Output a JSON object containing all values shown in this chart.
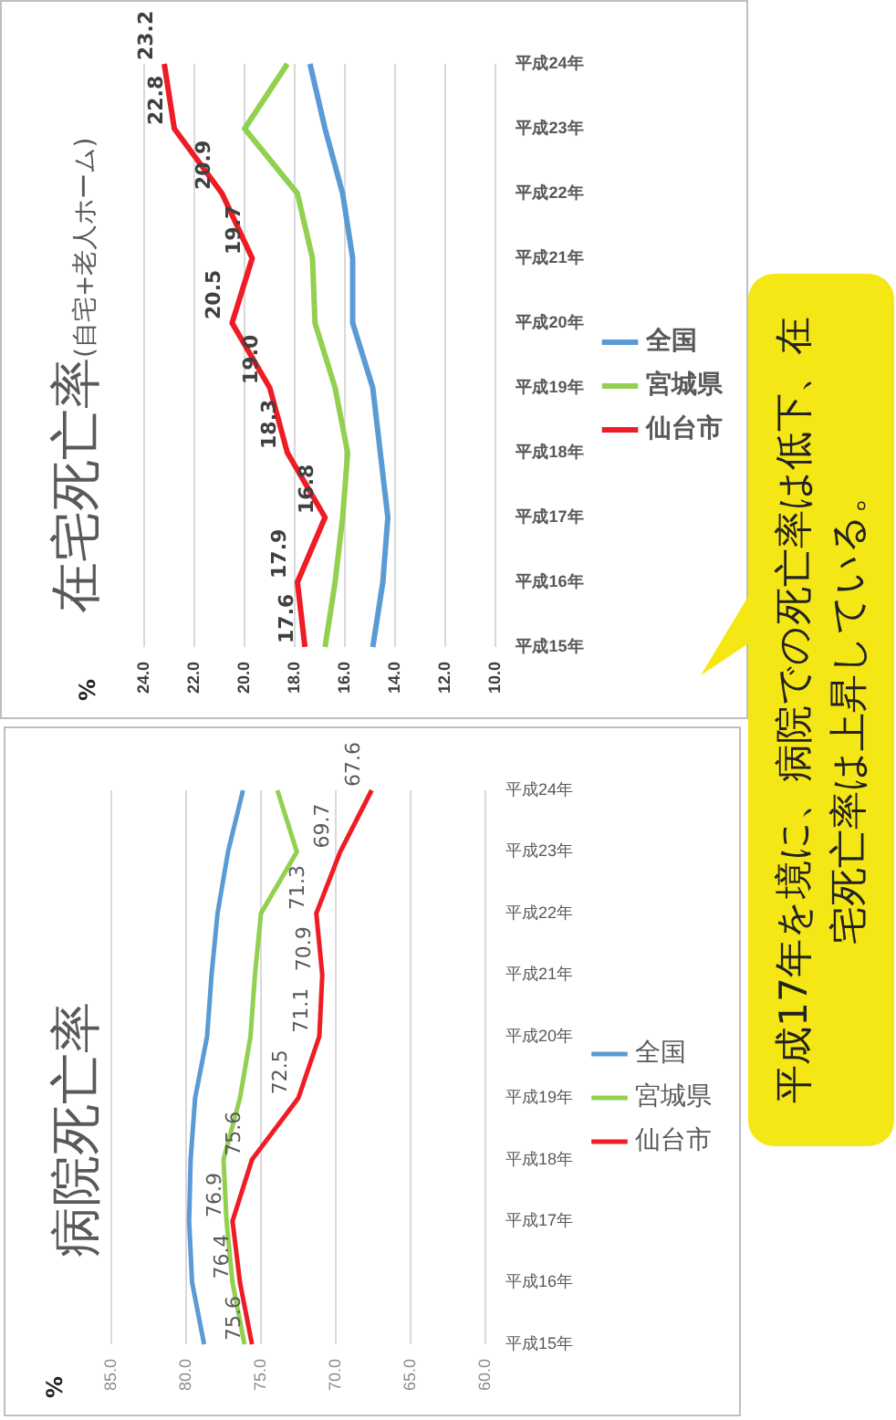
{
  "chart_data": [
    {
      "type": "line",
      "orientation": "horizontal",
      "title": "病院死亡率",
      "annotations": [
        "%"
      ],
      "categories": [
        "平成24年",
        "平成23年",
        "平成22年",
        "平成21年",
        "平成20年",
        "平成19年",
        "平成18年",
        "平成17年",
        "平成16年",
        "平成15年"
      ],
      "series": [
        {
          "name": "全国",
          "color": "#5b9bd5",
          "values": [
            76.2,
            77.2,
            77.9,
            78.3,
            78.6,
            79.4,
            79.7,
            79.8,
            79.6,
            78.8
          ]
        },
        {
          "name": "宮城県",
          "color": "#92d050",
          "values": [
            73.9,
            72.6,
            75.0,
            75.4,
            75.7,
            76.4,
            77.5,
            77.3,
            76.9,
            76.1
          ]
        },
        {
          "name": "仙台市",
          "color": "#ee1c25",
          "values": [
            67.6,
            69.7,
            71.3,
            70.9,
            71.1,
            72.5,
            75.6,
            76.9,
            76.4,
            75.6
          ],
          "value_labels": [
            "67.6",
            "69.7",
            "71.3",
            "70.9",
            "71.1",
            "72.5",
            "75.6",
            "76.9",
            "76.4",
            "75.6"
          ]
        }
      ],
      "xlim": [
        85,
        60
      ],
      "xticks": [
        {
          "value": 85,
          "label": "85.0"
        },
        {
          "value": 80,
          "label": "80.0"
        },
        {
          "value": 75,
          "label": "75.0"
        },
        {
          "value": 70,
          "label": "70.0"
        },
        {
          "value": 65,
          "label": "65.0"
        },
        {
          "value": 60,
          "label": "60.0"
        }
      ],
      "grid": "x",
      "legend": "right"
    },
    {
      "type": "line",
      "orientation": "horizontal",
      "title": "在宅死亡率",
      "subtitle": "(自宅+老人ホーム)",
      "annotations": [
        "%"
      ],
      "categories": [
        "平成24年",
        "平成23年",
        "平成22年",
        "平成21年",
        "平成20年",
        "平成19年",
        "平成18年",
        "平成17年",
        "平成16年",
        "平成15年"
      ],
      "series": [
        {
          "name": "全国",
          "color": "#5b9bd5",
          "values": [
            17.4,
            16.8,
            16.1,
            15.7,
            15.7,
            14.9,
            14.6,
            14.3,
            14.5,
            14.9
          ]
        },
        {
          "name": "宮城県",
          "color": "#92d050",
          "values": [
            18.3,
            20.0,
            17.9,
            17.3,
            17.2,
            16.4,
            15.9,
            16.1,
            16.4,
            16.8
          ]
        },
        {
          "name": "仙台市",
          "color": "#ee1c25",
          "values": [
            23.2,
            22.8,
            20.9,
            19.7,
            20.5,
            19.0,
            18.3,
            16.8,
            17.9,
            17.6
          ],
          "value_labels": [
            "23.2",
            "22.8",
            "20.9",
            "19.7",
            "20.5",
            "19.0",
            "18.3",
            "16.8",
            "17.9",
            "17.6"
          ]
        }
      ],
      "xlim": [
        24,
        10
      ],
      "xticks": [
        {
          "value": 24,
          "label": "24.0"
        },
        {
          "value": 22,
          "label": "22.0"
        },
        {
          "value": 20,
          "label": "20.0"
        },
        {
          "value": 18,
          "label": "18.0"
        },
        {
          "value": 16,
          "label": "16.0"
        },
        {
          "value": 14,
          "label": "14.0"
        },
        {
          "value": 12,
          "label": "12.0"
        },
        {
          "value": 10,
          "label": "10.0"
        }
      ],
      "grid": "x",
      "legend": "right"
    },
    {
      "type": "other",
      "annotations": [
        "平成17年を境に、病院での死亡率は低下、在宅死亡率は上昇している。"
      ]
    }
  ]
}
